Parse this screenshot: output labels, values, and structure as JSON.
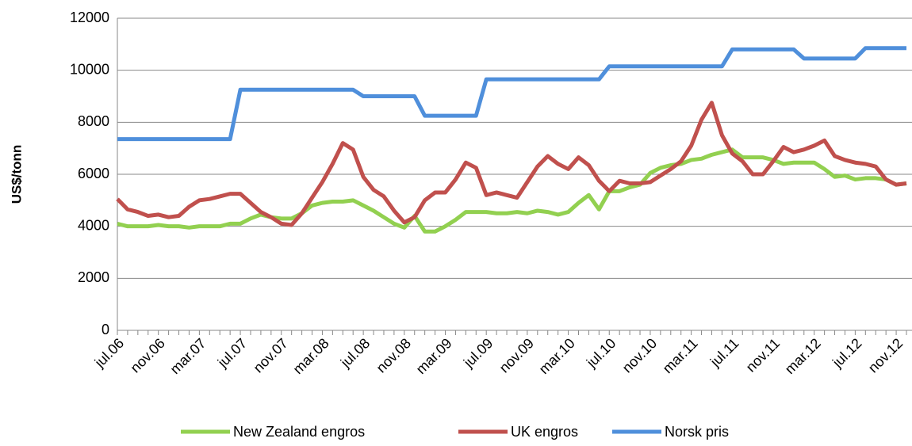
{
  "chart_data": {
    "type": "line",
    "y_label": "US$/tonn",
    "categories": [
      "jul.06",
      null,
      null,
      null,
      "nov.06",
      null,
      null,
      null,
      "mar.07",
      null,
      null,
      null,
      "jul.07",
      null,
      null,
      null,
      "nov.07",
      null,
      null,
      null,
      "mar.08",
      null,
      null,
      null,
      "jul.08",
      null,
      null,
      null,
      "nov.08",
      null,
      null,
      null,
      "mar.09",
      null,
      null,
      null,
      "jul.09",
      null,
      null,
      null,
      "nov.09",
      null,
      null,
      null,
      "mar.10",
      null,
      null,
      null,
      "jul.10",
      null,
      null,
      null,
      "nov.10",
      null,
      null,
      null,
      "mar.11",
      null,
      null,
      null,
      "jul.11",
      null,
      null,
      null,
      "nov.11",
      null,
      null,
      null,
      "mar.12",
      null,
      null,
      null,
      "jul.12",
      null,
      null,
      null,
      "nov.12",
      null
    ],
    "series": [
      {
        "name": "New Zealand engros",
        "color": "#92d050",
        "values": [
          4100,
          4000,
          4000,
          4000,
          4050,
          4000,
          4000,
          3950,
          4000,
          4000,
          4000,
          4100,
          4100,
          4300,
          4450,
          4350,
          4300,
          4300,
          4500,
          4800,
          4900,
          4950,
          4950,
          5000,
          4800,
          4600,
          4350,
          4100,
          3950,
          4400,
          3800,
          3800,
          4000,
          4250,
          4550,
          4550,
          4550,
          4500,
          4500,
          4550,
          4500,
          4600,
          4550,
          4450,
          4550,
          4900,
          5200,
          4650,
          5350,
          5350,
          5500,
          5600,
          6050,
          6250,
          6350,
          6400,
          6550,
          6600,
          6750,
          6850,
          6950,
          6650,
          6650,
          6650,
          6550,
          6400,
          6450,
          6450,
          6450,
          6200,
          5900,
          5950,
          5800,
          5850,
          5850,
          5800,
          5600,
          5650
        ]
      },
      {
        "name": "UK engros",
        "color": "#c0504d",
        "values": [
          5050,
          4650,
          4550,
          4400,
          4450,
          4350,
          4400,
          4750,
          5000,
          5050,
          5150,
          5250,
          5250,
          4900,
          4550,
          4350,
          4100,
          4050,
          4500,
          5100,
          5700,
          6400,
          7200,
          6950,
          5900,
          5400,
          5150,
          4600,
          4150,
          4350,
          5000,
          5300,
          5300,
          5800,
          6450,
          6250,
          5200,
          5300,
          5200,
          5100,
          5700,
          6300,
          6700,
          6400,
          6200,
          6650,
          6350,
          5750,
          5350,
          5750,
          5650,
          5650,
          5700,
          5950,
          6200,
          6500,
          7100,
          8100,
          8750,
          7500,
          6800,
          6500,
          6000,
          6000,
          6500,
          7050,
          6850,
          6950,
          7100,
          7300,
          6700,
          6550,
          6450,
          6400,
          6300,
          5800,
          5600,
          5650
        ]
      },
      {
        "name": "Norsk pris",
        "color": "#4f8fdb",
        "values": [
          7350,
          7350,
          7350,
          7350,
          7350,
          7350,
          7350,
          7350,
          7350,
          7350,
          7350,
          7350,
          9250,
          9250,
          9250,
          9250,
          9250,
          9250,
          9250,
          9250,
          9250,
          9250,
          9250,
          9250,
          9000,
          9000,
          9000,
          9000,
          9000,
          9000,
          8250,
          8250,
          8250,
          8250,
          8250,
          8250,
          9650,
          9650,
          9650,
          9650,
          9650,
          9650,
          9650,
          9650,
          9650,
          9650,
          9650,
          9650,
          10150,
          10150,
          10150,
          10150,
          10150,
          10150,
          10150,
          10150,
          10150,
          10150,
          10150,
          10150,
          10800,
          10800,
          10800,
          10800,
          10800,
          10800,
          10800,
          10450,
          10450,
          10450,
          10450,
          10450,
          10450,
          10850,
          10850,
          10850,
          10850,
          10850
        ]
      }
    ],
    "ylim": [
      0,
      12000
    ],
    "yticks": [
      0,
      2000,
      4000,
      6000,
      8000,
      10000,
      12000
    ],
    "grid": true
  }
}
